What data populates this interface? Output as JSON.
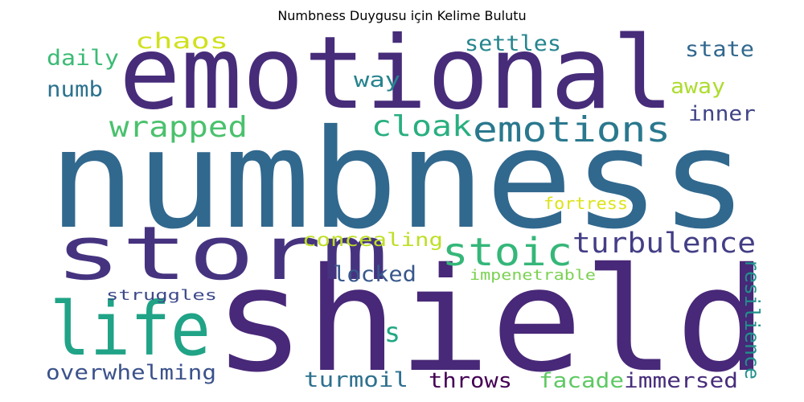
{
  "title": "Numbness Duygusu için Kelime Bulutu",
  "words": [
    {
      "text": "numbness",
      "color": "#31688e"
    },
    {
      "text": "shield",
      "color": "#482878"
    },
    {
      "text": "emotional",
      "color": "#472c7a"
    },
    {
      "text": "storm",
      "color": "#46337f"
    },
    {
      "text": "life",
      "color": "#20a386"
    },
    {
      "text": "emotions",
      "color": "#2a788e"
    },
    {
      "text": "stoic",
      "color": "#35b779"
    },
    {
      "text": "turbulence",
      "color": "#433e85"
    },
    {
      "text": "cloak",
      "color": "#29af7f"
    },
    {
      "text": "wrapped",
      "color": "#4ac16d"
    },
    {
      "text": "chaos",
      "color": "#d0e11c"
    },
    {
      "text": "daily",
      "color": "#3bbb75"
    },
    {
      "text": "numb",
      "color": "#2c728e"
    },
    {
      "text": "settles",
      "color": "#25858e"
    },
    {
      "text": "state",
      "color": "#31688e"
    },
    {
      "text": "way",
      "color": "#25838e"
    },
    {
      "text": "away",
      "color": "#addc30"
    },
    {
      "text": "inner",
      "color": "#414487"
    },
    {
      "text": "fortress",
      "color": "#dde318"
    },
    {
      "text": "concealing",
      "color": "#bddf26"
    },
    {
      "text": "locked",
      "color": "#38588c"
    },
    {
      "text": "impenetrable",
      "color": "#7ad151"
    },
    {
      "text": "struggles",
      "color": "#3e4a89"
    },
    {
      "text": "resilience",
      "color": "#21918c"
    },
    {
      "text": "s",
      "color": "#22a884"
    },
    {
      "text": "overwhelming",
      "color": "#3b528b"
    },
    {
      "text": "turmoil",
      "color": "#2d708e"
    },
    {
      "text": "throws",
      "color": "#440154"
    },
    {
      "text": "facade",
      "color": "#5ec962"
    },
    {
      "text": "immersed",
      "color": "#472d7b"
    }
  ]
}
